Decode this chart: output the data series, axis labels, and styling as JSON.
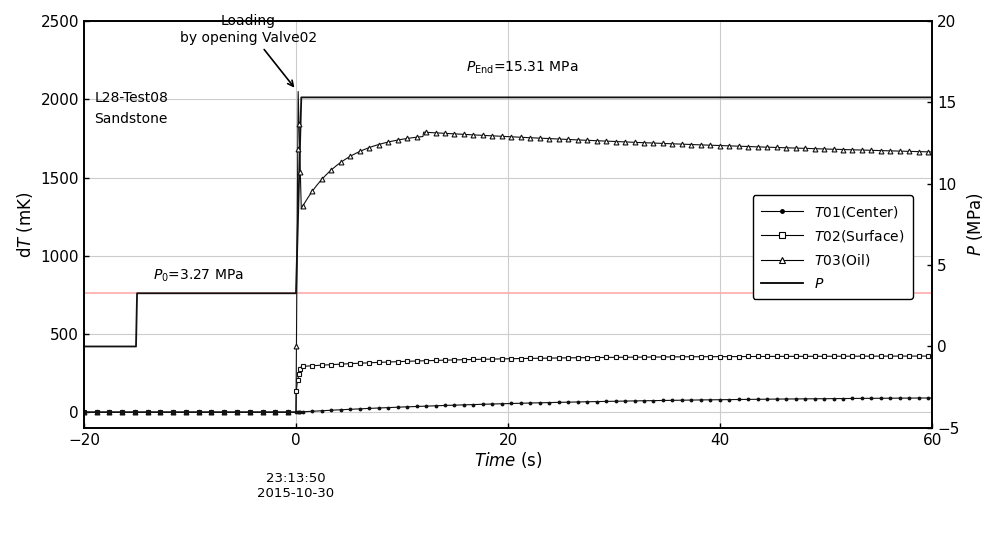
{
  "xlim": [
    -20,
    60
  ],
  "ylim_left": [
    -100,
    2500
  ],
  "ylim_right": [
    -5,
    20
  ],
  "xticks": [
    -20,
    0,
    20,
    40,
    60
  ],
  "yticks_left": [
    0,
    500,
    1000,
    1500,
    2000,
    2500
  ],
  "yticks_right": [
    -5,
    0,
    5,
    10,
    15,
    20
  ],
  "grid_color": "#cccccc",
  "background_color": "#ffffff",
  "annotation_loading": "Loading\nby opening Valve02",
  "annotation_p0": "$P_0$=3.27 MPa",
  "annotation_pend": "$P_{\\mathrm{End}}$=15.31 MPa",
  "annotation_sample": "L28-Test08\nSandstone",
  "annotation_time": "23:13:50\n2015-10-30",
  "t01_color": "#111111",
  "t02_color": "#111111",
  "t03_color": "#111111",
  "p_color": "#111111",
  "p0_line_color": "#ffaaaa",
  "figsize": [
    10.0,
    5.43
  ],
  "dpi": 100
}
